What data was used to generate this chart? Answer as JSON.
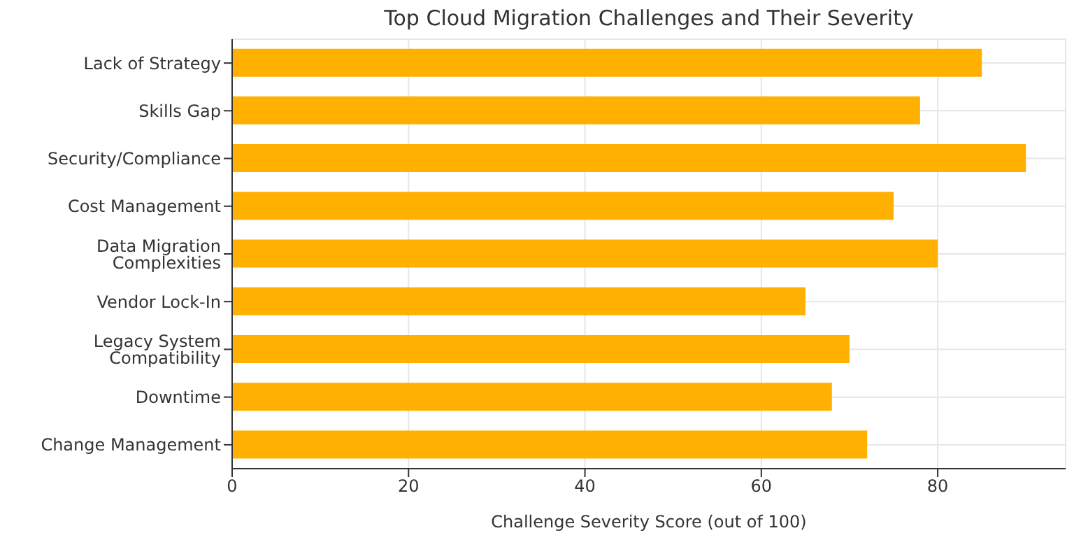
{
  "chart_data": {
    "type": "bar",
    "orientation": "horizontal",
    "title": "Top Cloud Migration Challenges and Their Severity",
    "xlabel": "Challenge Severity Score (out of 100)",
    "categories": [
      "Lack of Strategy",
      "Skills Gap",
      "Security/Compliance",
      "Cost Management",
      "Data Migration Complexities",
      "Vendor Lock-In",
      "Legacy System Compatibility",
      "Downtime",
      "Change Management"
    ],
    "values": [
      85,
      78,
      90,
      75,
      80,
      65,
      70,
      68,
      72
    ],
    "color": "#ffb000",
    "xlim": [
      0,
      94.5
    ],
    "xticks": [
      0,
      20,
      40,
      60,
      80
    ],
    "grid": true
  }
}
